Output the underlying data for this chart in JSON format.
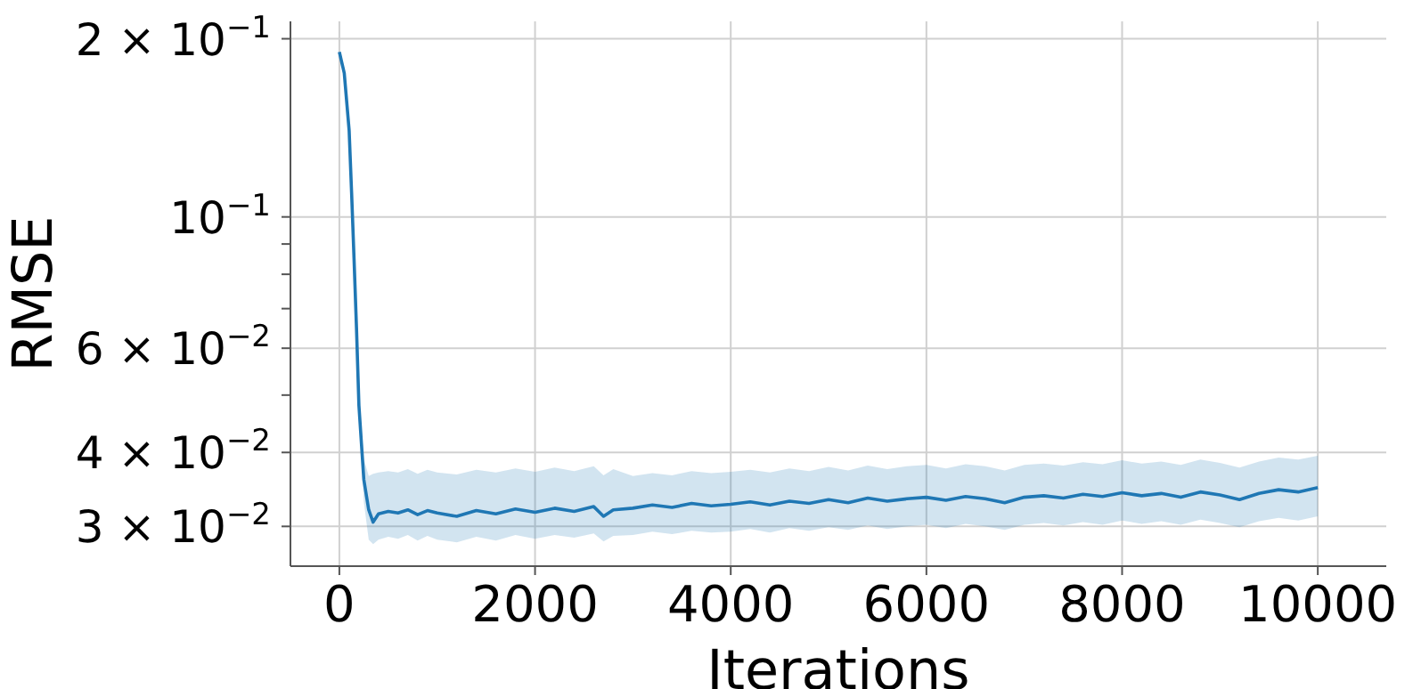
{
  "chart_data": {
    "type": "line",
    "xlabel": "Iterations",
    "ylabel": "RMSE",
    "log": "y",
    "grid": true,
    "xlim": [
      -500,
      10700
    ],
    "xticks": [
      0,
      2000,
      4000,
      6000,
      8000,
      10000
    ],
    "ylim": [
      0.0257,
      0.214
    ],
    "yticks": [
      {
        "value": 0.03,
        "label": "3 × 10$^{−2}$"
      },
      {
        "value": 0.04,
        "label": "4 × 10$^{−2}$"
      },
      {
        "value": 0.05,
        "label": null
      },
      {
        "value": 0.06,
        "label": "6 × 10$^{−2}$"
      },
      {
        "value": 0.07,
        "label": null
      },
      {
        "value": 0.08,
        "label": null
      },
      {
        "value": 0.09,
        "label": null
      },
      {
        "value": 0.1,
        "label": "10$^{−1}$"
      },
      {
        "value": 0.2,
        "label": "2 × 10$^{−1}$"
      }
    ],
    "x": [
      0,
      50,
      100,
      125,
      150,
      175,
      200,
      250,
      300,
      345,
      400,
      500,
      600,
      700,
      800,
      900,
      1000,
      1200,
      1400,
      1600,
      1800,
      2000,
      2200,
      2400,
      2600,
      2700,
      2800,
      3000,
      3200,
      3400,
      3600,
      3800,
      4000,
      4200,
      4400,
      4600,
      4800,
      5000,
      5200,
      5400,
      5600,
      5800,
      6000,
      6200,
      6400,
      6600,
      6800,
      7000,
      7200,
      7400,
      7600,
      7800,
      8000,
      8200,
      8400,
      8600,
      8800,
      9000,
      9200,
      9400,
      9600,
      9800,
      10000
    ],
    "series": [
      {
        "color": "#1f77b4",
        "values": [
          0.19,
          0.175,
          0.14,
          0.11,
          0.085,
          0.065,
          0.048,
          0.036,
          0.032,
          0.0305,
          0.0315,
          0.0318,
          0.0316,
          0.032,
          0.0314,
          0.0319,
          0.0316,
          0.0312,
          0.0319,
          0.0315,
          0.0321,
          0.0317,
          0.0322,
          0.0318,
          0.0324,
          0.0312,
          0.032,
          0.0322,
          0.0326,
          0.0323,
          0.0328,
          0.0325,
          0.0327,
          0.033,
          0.0326,
          0.0331,
          0.0328,
          0.0333,
          0.0329,
          0.0335,
          0.0331,
          0.0334,
          0.0336,
          0.0332,
          0.0337,
          0.0334,
          0.0329,
          0.0336,
          0.0338,
          0.0335,
          0.034,
          0.0337,
          0.0342,
          0.0338,
          0.0341,
          0.0336,
          0.0343,
          0.0339,
          0.0333,
          0.0341,
          0.0346,
          0.0343,
          0.0349
        ],
        "lower": [
          0.19,
          0.175,
          0.14,
          0.11,
          0.085,
          0.065,
          0.047,
          0.033,
          0.0285,
          0.028,
          0.0285,
          0.0288,
          0.0286,
          0.029,
          0.0284,
          0.0289,
          0.0285,
          0.0282,
          0.0288,
          0.0284,
          0.029,
          0.0286,
          0.029,
          0.0287,
          0.0292,
          0.0283,
          0.0289,
          0.029,
          0.0294,
          0.0291,
          0.0295,
          0.0293,
          0.0294,
          0.0297,
          0.0293,
          0.0298,
          0.0295,
          0.0299,
          0.0296,
          0.0301,
          0.0297,
          0.03,
          0.0302,
          0.0298,
          0.0303,
          0.03,
          0.0296,
          0.0302,
          0.0304,
          0.0301,
          0.0305,
          0.0302,
          0.0307,
          0.0303,
          0.0306,
          0.0302,
          0.0308,
          0.0304,
          0.0299,
          0.0306,
          0.031,
          0.0307,
          0.0312
        ],
        "upper": [
          0.19,
          0.175,
          0.14,
          0.11,
          0.085,
          0.066,
          0.05,
          0.039,
          0.0365,
          0.0368,
          0.037,
          0.0372,
          0.037,
          0.0375,
          0.0368,
          0.0374,
          0.037,
          0.0367,
          0.0374,
          0.037,
          0.0376,
          0.0371,
          0.0377,
          0.0372,
          0.0379,
          0.0366,
          0.0375,
          0.0365,
          0.0369,
          0.0366,
          0.0372,
          0.0369,
          0.0371,
          0.0374,
          0.037,
          0.0376,
          0.0372,
          0.0378,
          0.0373,
          0.038,
          0.0375,
          0.0379,
          0.0381,
          0.0376,
          0.0382,
          0.0379,
          0.0373,
          0.0381,
          0.0383,
          0.038,
          0.0385,
          0.0382,
          0.0388,
          0.0383,
          0.0386,
          0.0381,
          0.0389,
          0.0384,
          0.0377,
          0.0386,
          0.0392,
          0.0389,
          0.0395
        ]
      }
    ]
  }
}
